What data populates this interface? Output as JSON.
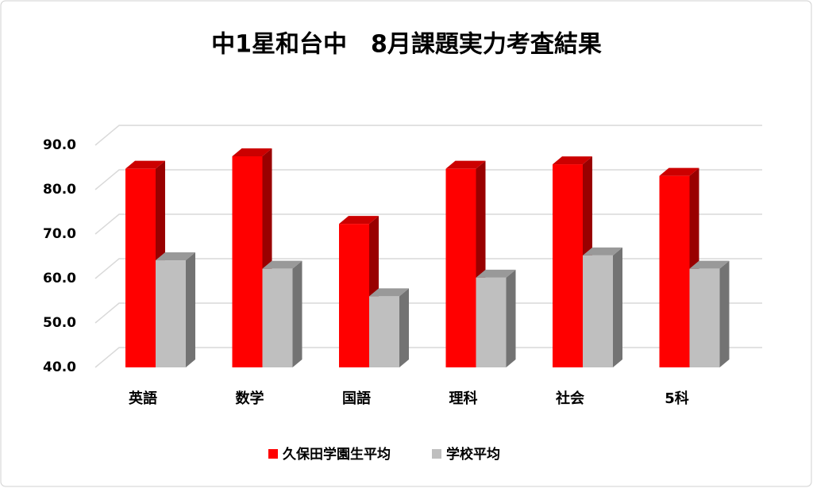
{
  "chart_data": {
    "type": "bar3d",
    "title": "中1星和台中　8月課題実力考査結果",
    "categories": [
      "英語",
      "数学",
      "国語",
      "理科",
      "社会",
      "5科"
    ],
    "series": [
      {
        "name": "久保田学園生平均",
        "color": "#ff0000",
        "values": [
          84.7,
          87.5,
          72.3,
          84.7,
          85.7,
          83.1
        ]
      },
      {
        "name": "学校平均",
        "color": "#bfbfbf",
        "values": [
          64.1,
          62.2,
          56.0,
          60.2,
          65.2,
          62.2
        ]
      }
    ],
    "ylim": [
      40,
      90
    ],
    "yticks": [
      {
        "value": 40,
        "label": "40.0"
      },
      {
        "value": 50,
        "label": "50.0"
      },
      {
        "value": 60,
        "label": "60.0"
      },
      {
        "value": 70,
        "label": "70.0"
      },
      {
        "value": 80,
        "label": "80.0"
      },
      {
        "value": 90,
        "label": "90.0"
      }
    ],
    "grid": true
  }
}
